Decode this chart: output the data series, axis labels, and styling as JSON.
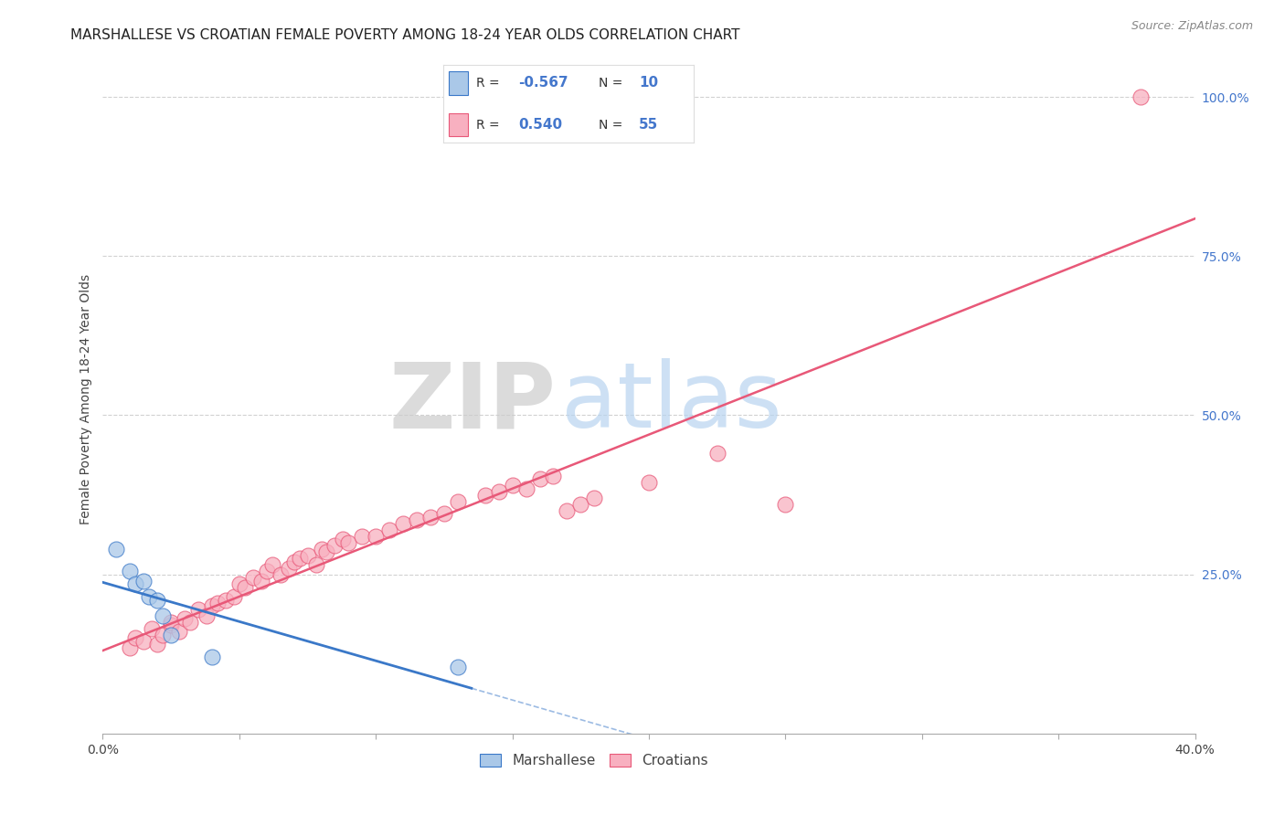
{
  "title": "MARSHALLESE VS CROATIAN FEMALE POVERTY AMONG 18-24 YEAR OLDS CORRELATION CHART",
  "source": "Source: ZipAtlas.com",
  "ylabel": "Female Poverty Among 18-24 Year Olds",
  "watermark_zip": "ZIP",
  "watermark_atlas": "atlas",
  "marshallese_R": -0.567,
  "marshallese_N": 10,
  "croatian_R": 0.54,
  "croatian_N": 55,
  "x_min": 0.0,
  "x_max": 0.4,
  "y_min": 0.0,
  "y_max": 1.05,
  "y_ticks": [
    0.0,
    0.25,
    0.5,
    0.75,
    1.0
  ],
  "y_tick_labels_right": [
    "",
    "25.0%",
    "50.0%",
    "75.0%",
    "100.0%"
  ],
  "marshallese_color": "#aac8e8",
  "croatian_color": "#f8b0c0",
  "marshallese_line_color": "#3a78c8",
  "croatian_line_color": "#e85878",
  "marshallese_scatter_x": [
    0.005,
    0.01,
    0.012,
    0.015,
    0.017,
    0.02,
    0.022,
    0.025,
    0.04,
    0.13
  ],
  "marshallese_scatter_y": [
    0.29,
    0.255,
    0.235,
    0.24,
    0.215,
    0.21,
    0.185,
    0.155,
    0.12,
    0.105
  ],
  "croatian_scatter_x": [
    0.01,
    0.012,
    0.015,
    0.018,
    0.02,
    0.022,
    0.025,
    0.025,
    0.028,
    0.03,
    0.032,
    0.035,
    0.038,
    0.04,
    0.042,
    0.045,
    0.048,
    0.05,
    0.052,
    0.055,
    0.058,
    0.06,
    0.062,
    0.065,
    0.068,
    0.07,
    0.072,
    0.075,
    0.078,
    0.08,
    0.082,
    0.085,
    0.088,
    0.09,
    0.095,
    0.1,
    0.105,
    0.11,
    0.115,
    0.12,
    0.125,
    0.13,
    0.14,
    0.145,
    0.15,
    0.155,
    0.16,
    0.165,
    0.17,
    0.175,
    0.18,
    0.2,
    0.225,
    0.25,
    0.38
  ],
  "croatian_scatter_y": [
    0.135,
    0.15,
    0.145,
    0.165,
    0.14,
    0.155,
    0.17,
    0.175,
    0.16,
    0.18,
    0.175,
    0.195,
    0.185,
    0.2,
    0.205,
    0.21,
    0.215,
    0.235,
    0.23,
    0.245,
    0.24,
    0.255,
    0.265,
    0.25,
    0.26,
    0.27,
    0.275,
    0.28,
    0.265,
    0.29,
    0.285,
    0.295,
    0.305,
    0.3,
    0.31,
    0.31,
    0.32,
    0.33,
    0.335,
    0.34,
    0.345,
    0.365,
    0.375,
    0.38,
    0.39,
    0.385,
    0.4,
    0.405,
    0.35,
    0.36,
    0.37,
    0.395,
    0.44,
    0.36,
    1.0
  ],
  "background_color": "#ffffff",
  "grid_color": "#cccccc",
  "title_color": "#222222",
  "axis_label_color": "#444444",
  "right_axis_color": "#4477cc"
}
